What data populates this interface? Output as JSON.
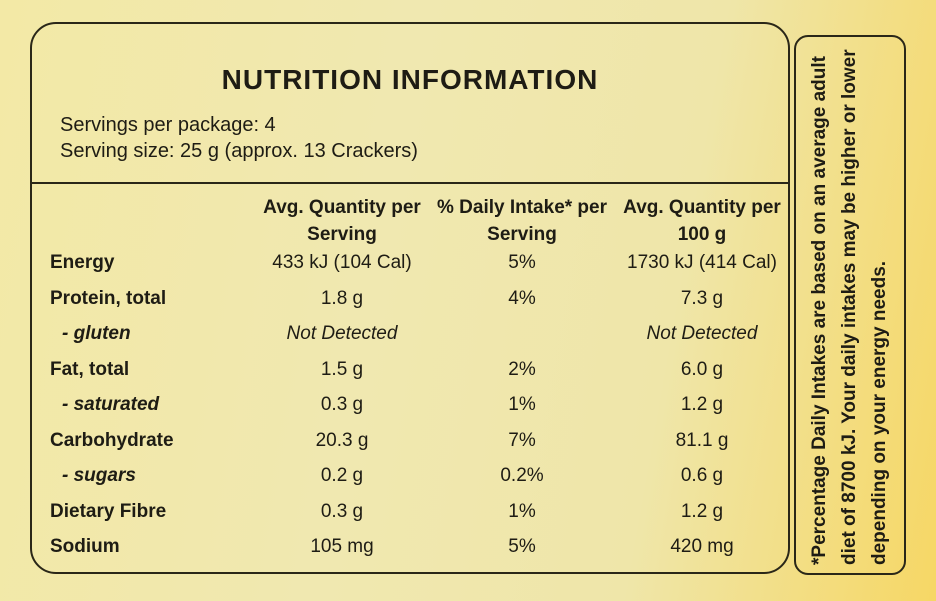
{
  "header": {
    "title": "NUTRITION INFORMATION"
  },
  "servings": [
    "Servings per package: 4",
    "Serving size: 25 g (approx. 13 Crackers)"
  ],
  "table": {
    "columns": [
      "Avg. Quantity per Serving",
      "% Daily Intake* per Serving",
      "Avg. Quantity per 100 g"
    ],
    "rows": [
      [
        "Energy",
        "433 kJ (104 Cal)",
        "5%",
        "1730 kJ (414 Cal)"
      ],
      [
        "Protein, total",
        "1.8 g",
        "4%",
        "7.3 g"
      ],
      [
        "- gluten",
        "Not Detected",
        null,
        "Not Detected"
      ],
      [
        "Fat, total",
        "1.5 g",
        "2%",
        "6.0 g"
      ],
      [
        "- saturated",
        "0.3 g",
        "1%",
        "1.2 g"
      ],
      [
        "Carbohydrate",
        "20.3 g",
        "7%",
        "81.1 g"
      ],
      [
        "- sugars",
        "0.2 g",
        "0.2%",
        "0.6 g"
      ],
      [
        "Dietary Fibre",
        "0.3 g",
        "1%",
        "1.2 g"
      ],
      [
        "Sodium",
        "105 mg",
        "5%",
        "420 mg"
      ]
    ]
  },
  "footnote": "*Percentage Daily Intakes are based on an average adult diet of 8700 kJ. Your daily intakes may be higher or lower depending on your energy needs."
}
